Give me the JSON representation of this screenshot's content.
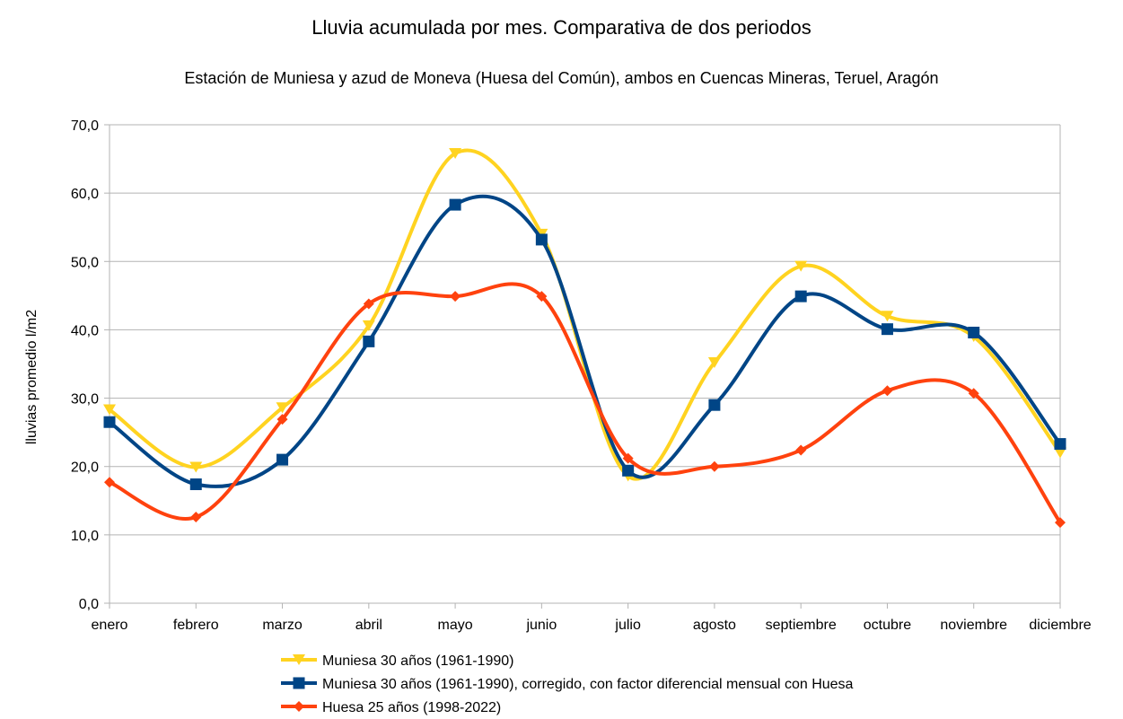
{
  "chart_data": {
    "type": "line",
    "title": "Lluvia acumulada por mes. Comparativa de dos periodos",
    "subtitle": "Estación de Muniesa y azud de Moneva (Huesa del Común), ambos en Cuencas Mineras, Teruel, Aragón",
    "xlabel": "",
    "ylabel": "lluvias promedio l/m2",
    "ylim": [
      0,
      70
    ],
    "yticks": [
      0,
      10,
      20,
      30,
      40,
      50,
      60,
      70
    ],
    "ytick_labels": [
      "0,0",
      "10,0",
      "20,0",
      "30,0",
      "40,0",
      "50,0",
      "60,0",
      "70,0"
    ],
    "grid": true,
    "legend_position": "bottom",
    "categories": [
      "enero",
      "febrero",
      "marzo",
      "abril",
      "mayo",
      "junio",
      "julio",
      "agosto",
      "septiembre",
      "octubre",
      "noviembre",
      "diciembre"
    ],
    "series": [
      {
        "name": "Muniesa 30 años (1961-1990)",
        "color": "#ffd320",
        "marker": "triangle-down",
        "values": [
          28.3,
          19.9,
          28.6,
          40.6,
          65.8,
          54.0,
          18.6,
          35.2,
          49.3,
          42.0,
          39.0,
          22.0
        ]
      },
      {
        "name": "Muniesa 30 años (1961-1990), corregido, con factor diferencial mensual con Huesa",
        "color": "#004586",
        "marker": "square",
        "values": [
          26.5,
          17.4,
          21.0,
          38.3,
          58.3,
          53.2,
          19.4,
          29.0,
          44.9,
          40.1,
          39.6,
          23.3
        ]
      },
      {
        "name": "Huesa 25 años (1998-2022)",
        "color": "#ff420e",
        "marker": "diamond",
        "values": [
          17.7,
          12.6,
          26.9,
          43.8,
          44.9,
          44.9,
          21.2,
          20.0,
          22.4,
          31.1,
          30.7,
          11.8
        ]
      }
    ]
  }
}
